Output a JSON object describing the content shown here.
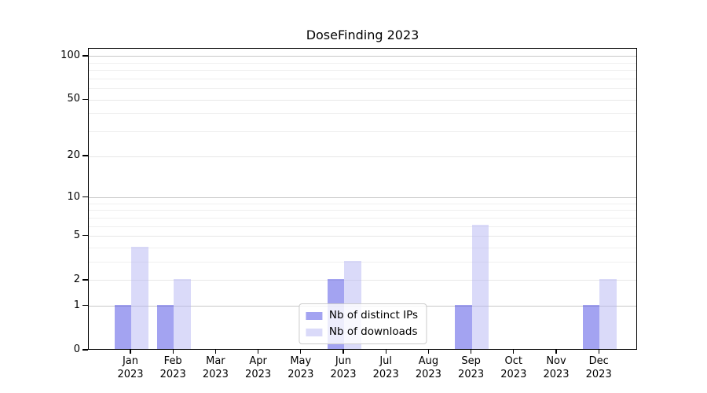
{
  "title": "DoseFinding 2023",
  "chart_data": {
    "type": "bar",
    "title": "DoseFinding 2023",
    "categories": [
      "Jan",
      "Feb",
      "Mar",
      "Apr",
      "May",
      "Jun",
      "Jul",
      "Aug",
      "Sep",
      "Oct",
      "Nov",
      "Dec"
    ],
    "category_year": "2023",
    "series": [
      {
        "name": "Nb of distinct IPs",
        "color_hex": "#a4a4f1",
        "color_rgba": "rgba(72,72,227,0.5)",
        "values": [
          1,
          1,
          0,
          0,
          0,
          2,
          0,
          0,
          1,
          0,
          0,
          1
        ]
      },
      {
        "name": "Nb of downloads",
        "color_hex": "#dadaf9",
        "color_rgba": "rgba(181,181,243,0.5)",
        "values": [
          4,
          2,
          0,
          0,
          0,
          3,
          0,
          0,
          6,
          0,
          0,
          2
        ]
      }
    ],
    "y_axis": {
      "ticks": [
        0,
        1,
        2,
        5,
        10,
        20,
        50,
        100
      ],
      "minor_ticks": [
        3,
        4,
        6,
        7,
        8,
        9,
        30,
        40,
        60,
        70,
        80,
        90
      ],
      "scale": "log10(1+x)",
      "ylim": [
        0,
        113
      ]
    },
    "grid": true,
    "legend_position": "lower center",
    "colors": {
      "major_gridline": "#c8c8c8",
      "labeled_minor_gridline": "#e7e7e7",
      "minor_gridline": "#efefef",
      "axis": "#000000",
      "background": "#ffffff"
    }
  }
}
